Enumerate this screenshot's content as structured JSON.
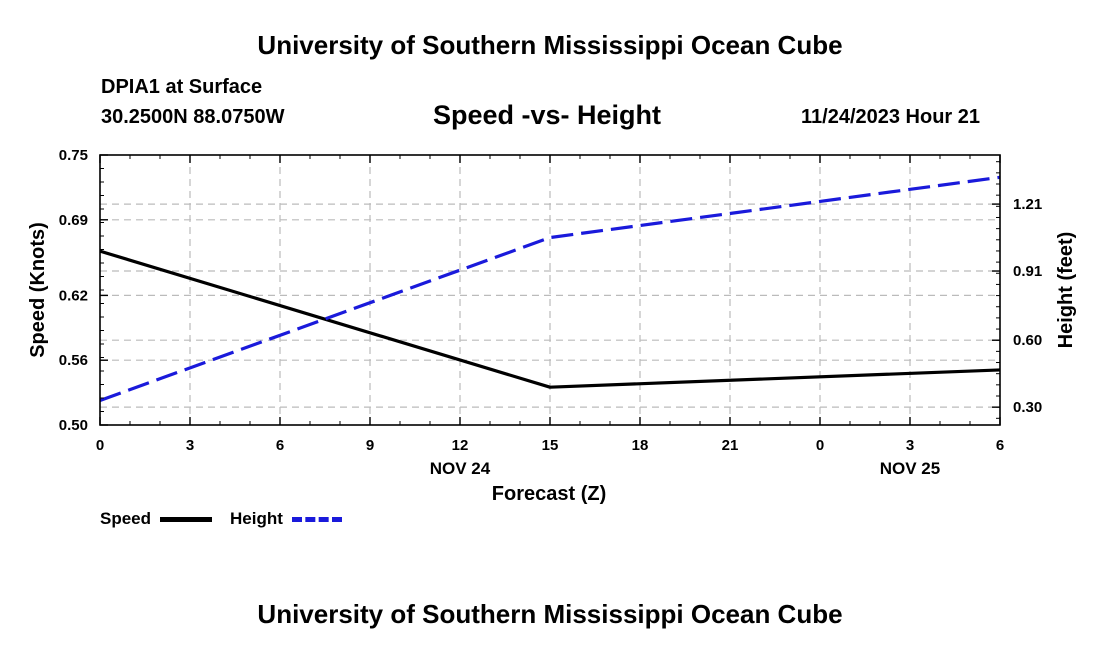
{
  "page": {
    "title": "University of Southern Mississippi Ocean Cube",
    "footer_title": "University of Southern Mississippi Ocean Cube",
    "station": "DPIA1 at Surface",
    "coords": "30.2500N  88.0750W",
    "chart_title": "Speed -vs- Height",
    "datetime": "11/24/2023 Hour 21"
  },
  "legend": {
    "speed_label": "Speed",
    "height_label": "Height"
  },
  "colors": {
    "speed": "#000000",
    "height": "#1a1adb",
    "grid": "#bbbbbb"
  },
  "chart_data": {
    "type": "line",
    "title": "Speed -vs- Height",
    "xlabel": "Forecast (Z)",
    "ylabel": "Speed (Knots)",
    "y2label": "Height (feet)",
    "x": [
      0,
      3,
      6,
      9,
      12,
      15,
      18,
      21,
      24,
      27,
      30
    ],
    "x_tick_labels": [
      "0",
      "3",
      "6",
      "9",
      "12",
      "15",
      "18",
      "21",
      "0",
      "3",
      "6"
    ],
    "date_labels": [
      {
        "x": 12,
        "label": "NOV 24"
      },
      {
        "x": 27,
        "label": "NOV 25"
      }
    ],
    "xlim": [
      0,
      30
    ],
    "ylim": [
      0.5,
      0.75
    ],
    "y_ticks": [
      0.5,
      0.56,
      0.62,
      0.69,
      0.75
    ],
    "y_tick_labels": [
      "0.50",
      "0.56",
      "0.62",
      "0.69",
      "0.75"
    ],
    "y2lim": [
      0.22,
      1.43
    ],
    "y2_ticks": [
      0.3,
      0.6,
      0.91,
      1.21
    ],
    "y2_tick_labels": [
      "0.30",
      "0.60",
      "0.91",
      "1.21"
    ],
    "grid": true,
    "series": [
      {
        "name": "Speed",
        "axis": "left",
        "style": "solid",
        "points": [
          [
            0,
            0.661
          ],
          [
            15,
            0.535
          ],
          [
            30,
            0.551
          ]
        ]
      },
      {
        "name": "Height",
        "axis": "right",
        "style": "dashed",
        "points": [
          [
            0,
            0.33
          ],
          [
            15,
            1.06
          ],
          [
            30,
            1.33
          ]
        ]
      }
    ]
  }
}
